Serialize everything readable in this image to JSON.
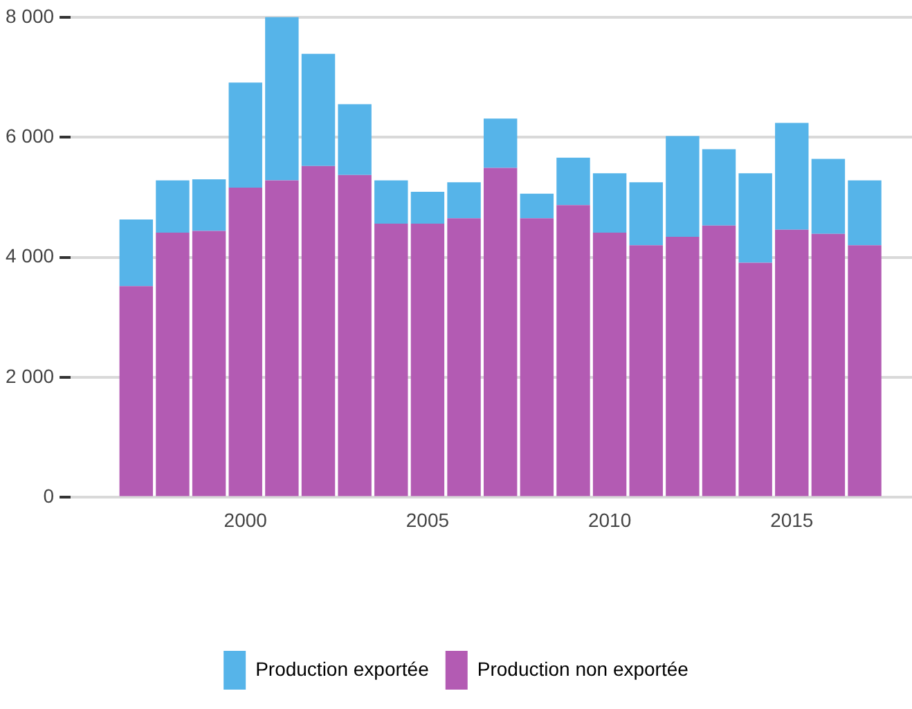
{
  "chart_data": {
    "type": "bar",
    "stacked": true,
    "x": [
      1997,
      1998,
      1999,
      2000,
      2001,
      2002,
      2003,
      2004,
      2005,
      2006,
      2007,
      2008,
      2009,
      2010,
      2011,
      2012,
      2013,
      2014,
      2015,
      2016,
      2017
    ],
    "series": [
      {
        "name": "Production non exportée",
        "color": "#b35bb3",
        "values": [
          3520,
          4410,
          4440,
          5160,
          5280,
          5520,
          5370,
          4560,
          4560,
          4650,
          5490,
          4650,
          4870,
          4410,
          4200,
          4340,
          4530,
          3910,
          4460,
          4390,
          4200
        ]
      },
      {
        "name": "Production exportée",
        "color": "#56b4e9",
        "values": [
          1110,
          870,
          860,
          1750,
          2750,
          1870,
          1180,
          720,
          530,
          600,
          820,
          410,
          790,
          990,
          1050,
          1680,
          1270,
          1490,
          1780,
          1250,
          1080
        ]
      }
    ],
    "xlim": [
      1995.2,
      2018.3
    ],
    "xticks": [
      2000,
      2005,
      2010,
      2015
    ],
    "ylim": [
      0,
      8000
    ],
    "yticks": [
      {
        "value": 0,
        "label": "0"
      },
      {
        "value": 2000,
        "label": "2 000"
      },
      {
        "value": 4000,
        "label": "4 000"
      },
      {
        "value": 6000,
        "label": "6 000"
      },
      {
        "value": 8000,
        "label": "8 000"
      }
    ],
    "grid": "y",
    "legend": "bottom"
  }
}
